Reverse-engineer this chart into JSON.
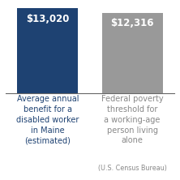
{
  "values": [
    13020,
    12316
  ],
  "labels": [
    "$13,020",
    "$12,316"
  ],
  "bar_colors": [
    "#1e4272",
    "#999999"
  ],
  "ylim": [
    0,
    14000
  ],
  "background_color": "#ffffff",
  "label_color": "#ffffff",
  "label_fontsize": 8.5,
  "label_fontweight": "bold",
  "xlabel_color1": "#1e4272",
  "xlabel_color2": "#888888",
  "xlabel_fontsize": 7.0,
  "sub_fontsize": 5.8,
  "bar_width": 0.72,
  "xlim": [
    -0.5,
    1.5
  ],
  "bottom_labels": [
    "Average annual\nbenefit for a\ndisabled worker\nin Maine\n(estimated)",
    "Federal poverty\nthreshold for\na working-age\nperson living\nalone"
  ],
  "sub_label": "(U.S. Census Bureau)"
}
